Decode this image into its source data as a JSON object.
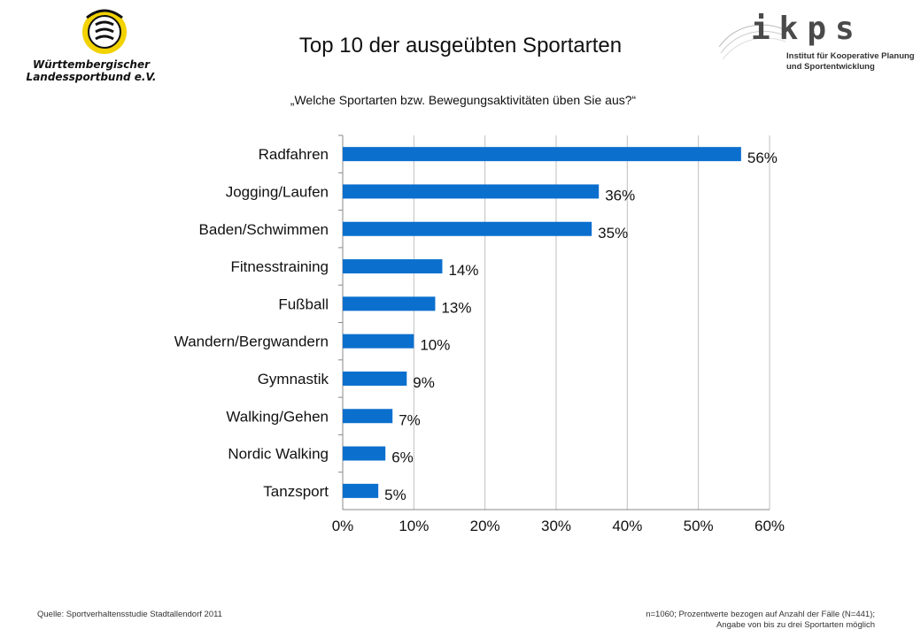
{
  "header": {
    "title": "Top 10 der ausgeübten Sportarten",
    "subtitle": "„Welche Sportarten bzw. Bewegungsaktivitäten üben Sie aus?“"
  },
  "logos": {
    "left_line1": "Württembergischer",
    "left_line2": "Landessportbund e.V.",
    "right_brand": "ikps",
    "right_line1": "Institut für Kooperative Planung",
    "right_line2": "und Sportentwicklung"
  },
  "footer": {
    "source": "Quelle: Sportverhaltensstudie Stadtallendorf 2011",
    "note_line1": "n=1060; Prozentwerte bezogen auf Anzahl der Fälle (N=441);",
    "note_line2": "Angabe von bis zu drei Sportarten möglich"
  },
  "colors": {
    "bar": "#0b6fce",
    "grid": "#bfbfbf",
    "logo_yellow": "#f2d200"
  },
  "chart_data": {
    "type": "bar",
    "orientation": "horizontal",
    "categories": [
      "Radfahren",
      "Jogging/Laufen",
      "Baden/Schwimmen",
      "Fitnesstraining",
      "Fußball",
      "Wandern/Bergwandern",
      "Gymnastik",
      "Walking/Gehen",
      "Nordic Walking",
      "Tanzsport"
    ],
    "values": [
      56,
      36,
      35,
      14,
      13,
      10,
      9,
      7,
      6,
      5
    ],
    "value_labels": [
      "56%",
      "36%",
      "35%",
      "14%",
      "13%",
      "10%",
      "9%",
      "7%",
      "6%",
      "5%"
    ],
    "xlim": [
      0,
      60
    ],
    "xticks": [
      0,
      10,
      20,
      30,
      40,
      50,
      60
    ],
    "xtick_labels": [
      "0%",
      "10%",
      "20%",
      "30%",
      "40%",
      "50%",
      "60%"
    ],
    "grid": true
  }
}
